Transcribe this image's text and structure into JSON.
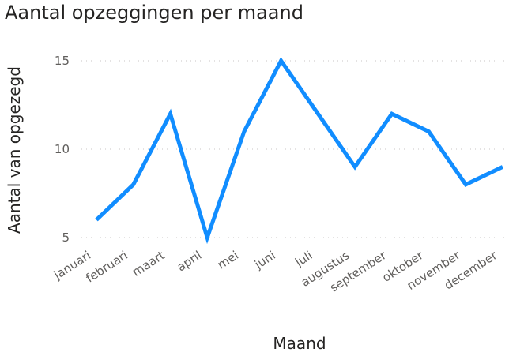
{
  "chart_data": {
    "type": "line",
    "title": "Aantal opzeggingen per maand",
    "xlabel": "Maand",
    "ylabel": "Aantal van opgezegd",
    "categories": [
      "januari",
      "februari",
      "maart",
      "april",
      "mei",
      "juni",
      "juli",
      "augustus",
      "september",
      "oktober",
      "november",
      "december"
    ],
    "series": [
      {
        "values": [
          6,
          8,
          12,
          5,
          11,
          15,
          12,
          9,
          12,
          11,
          8,
          9
        ]
      }
    ],
    "yticks": [
      5,
      10,
      15
    ],
    "ylim": [
      5,
      15
    ],
    "grid": true,
    "legend": "none",
    "colors": {
      "line": "#118DFF",
      "text": "#252423",
      "tick": "#605e5c",
      "grid": "#c8c6c4"
    }
  }
}
